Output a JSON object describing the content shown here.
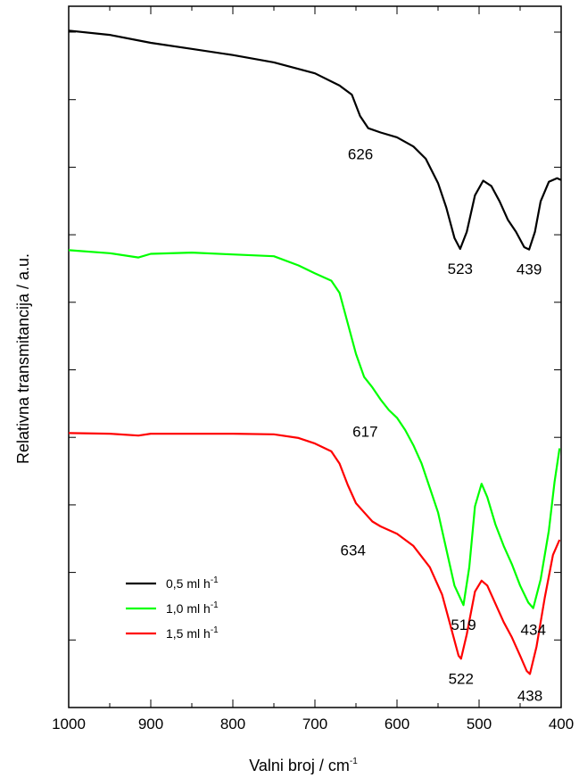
{
  "chart_data": {
    "type": "line",
    "xlabel": "Valni broj / cm",
    "xlabel_sup": "-1",
    "ylabel": "Relativna transmitancija / a.u.",
    "xlim": [
      1000,
      400
    ],
    "x_reversed": true,
    "x_ticks": [
      1000,
      900,
      800,
      700,
      600,
      500,
      400
    ],
    "y_tick_labels": "none",
    "grid": false,
    "legend_placement": "bottom-left",
    "series": [
      {
        "name": "0,5 ml h",
        "name_sup": "-1",
        "color": "#000000",
        "x": [
          1000,
          950,
          900,
          850,
          800,
          750,
          700,
          670,
          655,
          645,
          635,
          620,
          600,
          580,
          565,
          550,
          540,
          530,
          523,
          515,
          505,
          495,
          485,
          475,
          465,
          455,
          445,
          439,
          432,
          425,
          415,
          405,
          400
        ],
        "y": [
          96,
          95.3,
          94,
          93,
          92,
          90.8,
          89,
          87,
          85.5,
          82,
          80,
          79.3,
          78.5,
          77,
          75,
          71,
          67,
          62,
          60.2,
          63,
          69,
          71.4,
          70.5,
          68,
          65,
          63,
          60.5,
          60.1,
          63,
          68,
          71.2,
          71.8,
          71.5
        ],
        "peak_labels": [
          {
            "x": 626,
            "text": "626"
          },
          {
            "x": 523,
            "text": "523"
          },
          {
            "x": 439,
            "text": "439"
          }
        ]
      },
      {
        "name": "1,0 ml h",
        "name_sup": "-1",
        "color": "#00ff00",
        "x": [
          1000,
          950,
          915,
          900,
          850,
          800,
          750,
          720,
          700,
          680,
          670,
          660,
          650,
          640,
          630,
          620,
          610,
          600,
          590,
          580,
          570,
          560,
          550,
          540,
          530,
          519,
          512,
          505,
          497,
          490,
          480,
          470,
          460,
          450,
          440,
          434,
          425,
          415,
          408,
          402
        ],
        "y": [
          60,
          59.5,
          58.8,
          59.4,
          59.6,
          59.3,
          59,
          57.5,
          56.2,
          55,
          53,
          48,
          43,
          39.2,
          37.5,
          35.5,
          33.8,
          32.5,
          30.5,
          28,
          25,
          21,
          17,
          11,
          5,
          1.8,
          8,
          18,
          21.7,
          19.5,
          15,
          11.5,
          8.5,
          5,
          2.2,
          1.3,
          6,
          14,
          22,
          27.5
        ],
        "peak_labels": [
          {
            "x": 617,
            "text": "617"
          },
          {
            "x": 519,
            "text": "519"
          },
          {
            "x": 434,
            "text": "434"
          }
        ]
      },
      {
        "name": "1,5 ml h",
        "name_sup": "-1",
        "color": "#ff0000",
        "x": [
          1000,
          950,
          915,
          900,
          850,
          800,
          750,
          720,
          700,
          680,
          670,
          660,
          650,
          640,
          630,
          620,
          600,
          580,
          560,
          545,
          535,
          525,
          522,
          515,
          505,
          497,
          490,
          480,
          470,
          460,
          450,
          442,
          438,
          430,
          420,
          410,
          402
        ],
        "y": [
          30,
          29.9,
          29.6,
          29.9,
          29.9,
          29.9,
          29.8,
          29.2,
          28.3,
          27,
          25,
          21.5,
          18.5,
          17,
          15.5,
          14.7,
          13.5,
          11.5,
          8,
          3.5,
          -1.5,
          -6.5,
          -7,
          -3,
          4,
          5.8,
          5,
          2,
          -1,
          -3.5,
          -6.5,
          -9,
          -9.5,
          -5,
          3,
          10,
          12.5
        ],
        "peak_labels": [
          {
            "x": 634,
            "text": "634"
          },
          {
            "x": 522,
            "text": "522"
          },
          {
            "x": 438,
            "text": "438"
          }
        ]
      }
    ]
  }
}
